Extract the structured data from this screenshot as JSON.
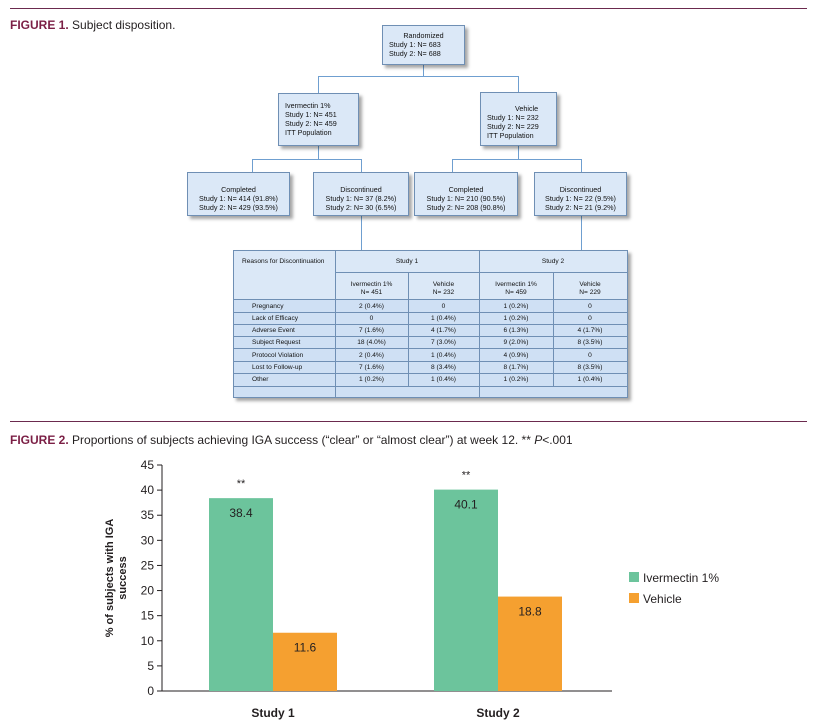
{
  "figure1": {
    "label": "FIGURE 1.",
    "caption": " Subject disposition.",
    "randomized": {
      "title": "Randomized",
      "line1": "Study 1: N= 683",
      "line2": "Study 2: N= 688"
    },
    "ivermectin": {
      "title": "Ivermectin 1%",
      "line1": "Study 1: N= 451",
      "line2": "Study 2: N= 459",
      "line3": "ITT Population"
    },
    "vehicle": {
      "title": "Vehicle",
      "line1": "Study 1: N= 232",
      "line2": "Study 2: N= 229",
      "line3": "ITT Population"
    },
    "iv_completed": {
      "title": "Completed",
      "line1": "Study 1: N= 414 (91.8%)",
      "line2": "Study 2: N= 429 (93.5%)"
    },
    "iv_discontinued": {
      "title": "Discontinued",
      "line1": "Study 1: N= 37 (8.2%)",
      "line2": "Study 2: N= 30 (6.5%)"
    },
    "veh_completed": {
      "title": "Completed",
      "line1": "Study 1: N= 210 (90.5%)",
      "line2": "Study 2: N= 208 (90.8%)"
    },
    "veh_discontinued": {
      "title": "Discontinued",
      "line1": "Study 1: N= 22 (9.5%)",
      "line2": "Study 2: N= 21 (9.2%)"
    },
    "reasons_table": {
      "header": "Reasons for Discontinuation",
      "study1": "Study 1",
      "study2": "Study 2",
      "col1": {
        "name": "Ivermectin 1%",
        "n": "N= 451"
      },
      "col2": {
        "name": "Vehicle",
        "n": "N= 232"
      },
      "col3": {
        "name": "Ivermectin 1%",
        "n": "N= 459"
      },
      "col4": {
        "name": "Vehicle",
        "n": "N= 229"
      },
      "rows": [
        {
          "reason": "Pregnancy",
          "v": [
            "2 (0.4%)",
            "0",
            "1 (0.2%)",
            "0"
          ]
        },
        {
          "reason": "Lack of Efficacy",
          "v": [
            "0",
            "1 (0.4%)",
            "1 (0.2%)",
            "0"
          ]
        },
        {
          "reason": "Adverse Event",
          "v": [
            "7 (1.6%)",
            "4 (1.7%)",
            "6 (1.3%)",
            "4 (1.7%)"
          ]
        },
        {
          "reason": "Subject Request",
          "v": [
            "18 (4.0%)",
            "7 (3.0%)",
            "9 (2.0%)",
            "8 (3.5%)"
          ]
        },
        {
          "reason": "Protocol Violation",
          "v": [
            "2 (0.4%)",
            "1 (0.4%)",
            "4 (0.9%)",
            "0"
          ]
        },
        {
          "reason": "Lost to Follow-up",
          "v": [
            "7 (1.6%)",
            "8 (3.4%)",
            "8 (1.7%)",
            "8 (3.5%)"
          ]
        },
        {
          "reason": "Other",
          "v": [
            "1 (0.2%)",
            "1 (0.4%)",
            "1 (0.2%)",
            "1 (0.4%)"
          ]
        }
      ]
    }
  },
  "figure2": {
    "label": "FIGURE 2.",
    "caption": " Proportions of subjects achieving IGA success (“clear” or “almost clear”) at week 12. ** ",
    "caption_p": "P",
    "caption_end": "<.001"
  },
  "chart_data": {
    "type": "bar",
    "categories": [
      "Study 1",
      "Study 2"
    ],
    "series": [
      {
        "name": "Ivermectin 1%",
        "values": [
          38.4,
          40.1
        ],
        "labels": [
          "38.4",
          "40.1"
        ],
        "color": "#6cc49c"
      },
      {
        "name": "Vehicle",
        "values": [
          11.6,
          18.8
        ],
        "labels": [
          "11.6",
          "18.8"
        ],
        "color": "#f5a030"
      }
    ],
    "annotations": [
      "**",
      "**"
    ],
    "ylabel": "% of subjects with IGA success",
    "ylim": [
      0,
      45
    ],
    "yticks": [
      0,
      5,
      10,
      15,
      20,
      25,
      30,
      35,
      40,
      45
    ],
    "ytick_labels": [
      "0",
      "5",
      "10",
      "15",
      "20",
      "25",
      "30",
      "35",
      "40",
      "45"
    ],
    "legend_position": "right"
  }
}
